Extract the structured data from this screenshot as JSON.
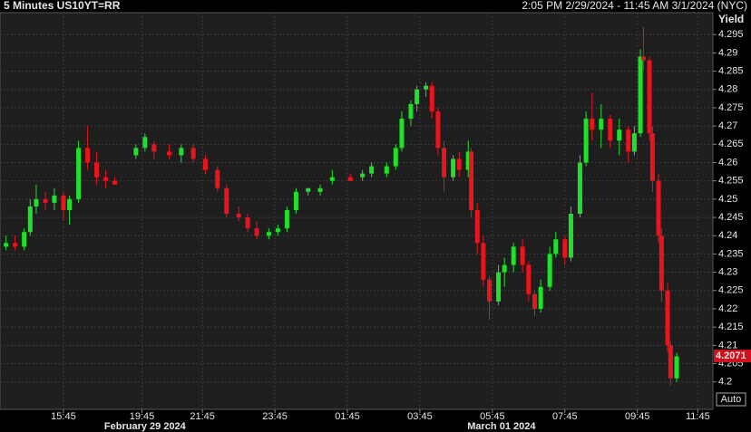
{
  "chart_data": {
    "type": "candlestick",
    "title": "5 Minutes US10YT=RR",
    "subtitle": "2:05 PM 2/29/2024 - 11:45 AM 3/1/2024 (NYC)",
    "y_label": "Yield",
    "last_price": 4.2071,
    "button": "Auto",
    "up_color": "#21e02c",
    "down_color": "#e8141e",
    "grid": true,
    "x": [
      2,
      5,
      8,
      10,
      12,
      15,
      18,
      21,
      23,
      26,
      29,
      32,
      35,
      38,
      45,
      48,
      51,
      56,
      60,
      64,
      68,
      72,
      75,
      79,
      82,
      85,
      89,
      92,
      95,
      98,
      102,
      106,
      110,
      116,
      120,
      123,
      128,
      131,
      133,
      136,
      138,
      141,
      143,
      145,
      147,
      150,
      152,
      155,
      156,
      158,
      160,
      162,
      165,
      167,
      170,
      173,
      175,
      177,
      179,
      182,
      184,
      187,
      189,
      192,
      194,
      196,
      199,
      202,
      205,
      208,
      210,
      212,
      213,
      215,
      216,
      218,
      219,
      221,
      222,
      224
    ],
    "open": [
      4.237,
      4.238,
      4.237,
      4.241,
      4.248,
      4.25,
      4.249,
      4.251,
      4.247,
      4.25,
      4.264,
      4.26,
      4.256,
      4.255,
      4.262,
      4.264,
      4.265,
      4.263,
      4.262,
      4.264,
      4.261,
      4.258,
      4.253,
      4.246,
      4.245,
      4.242,
      4.24,
      4.241,
      4.242,
      4.247,
      4.252,
      4.252,
      4.255,
      4.256,
      4.256,
      4.257,
      4.257,
      4.259,
      4.264,
      4.272,
      4.276,
      4.28,
      4.281,
      4.274,
      4.264,
      4.256,
      4.261,
      4.258,
      4.263,
      4.247,
      4.238,
      4.228,
      4.222,
      4.23,
      4.232,
      4.237,
      4.232,
      4.224,
      4.22,
      4.226,
      4.235,
      4.239,
      4.234,
      4.246,
      4.26,
      4.272,
      4.269,
      4.272,
      4.266,
      4.269,
      4.263,
      4.268,
      4.289,
      4.288,
      4.268,
      4.255,
      4.24,
      4.225,
      4.21,
      4.201
    ],
    "high": [
      4.24,
      4.24,
      4.242,
      4.25,
      4.254,
      4.252,
      4.253,
      4.252,
      4.251,
      4.266,
      4.27,
      4.263,
      4.258,
      4.256,
      4.265,
      4.268,
      4.266,
      4.265,
      4.265,
      4.265,
      4.262,
      4.259,
      4.254,
      4.248,
      4.246,
      4.244,
      4.242,
      4.243,
      4.248,
      4.253,
      4.253,
      4.254,
      4.258,
      4.257,
      4.258,
      4.26,
      4.26,
      4.265,
      4.274,
      4.277,
      4.281,
      4.282,
      4.282,
      4.275,
      4.266,
      4.262,
      4.263,
      4.266,
      4.264,
      4.249,
      4.24,
      4.229,
      4.232,
      4.234,
      4.238,
      4.239,
      4.233,
      4.225,
      4.228,
      4.237,
      4.241,
      4.24,
      4.248,
      4.262,
      4.274,
      4.279,
      4.276,
      4.273,
      4.272,
      4.27,
      4.27,
      4.291,
      4.297,
      4.289,
      4.27,
      4.257,
      4.242,
      4.227,
      4.211,
      4.208
    ],
    "low": [
      4.236,
      4.236,
      4.236,
      4.24,
      4.246,
      4.247,
      4.247,
      4.244,
      4.243,
      4.249,
      4.258,
      4.254,
      4.253,
      4.254,
      4.261,
      4.263,
      4.261,
      4.261,
      4.26,
      4.26,
      4.257,
      4.252,
      4.245,
      4.244,
      4.241,
      4.239,
      4.239,
      4.24,
      4.241,
      4.246,
      4.251,
      4.251,
      4.254,
      4.255,
      4.255,
      4.256,
      4.256,
      4.258,
      4.263,
      4.27,
      4.274,
      4.278,
      4.272,
      4.262,
      4.252,
      4.255,
      4.256,
      4.256,
      4.245,
      4.235,
      4.226,
      4.217,
      4.221,
      4.226,
      4.23,
      4.23,
      4.222,
      4.218,
      4.219,
      4.225,
      4.234,
      4.232,
      4.233,
      4.245,
      4.259,
      4.266,
      4.264,
      4.264,
      4.262,
      4.26,
      4.262,
      4.267,
      4.285,
      4.266,
      4.252,
      4.238,
      4.222,
      4.208,
      4.199,
      4.2
    ],
    "close": [
      4.238,
      4.237,
      4.241,
      4.248,
      4.25,
      4.249,
      4.251,
      4.247,
      4.25,
      4.264,
      4.26,
      4.256,
      4.255,
      4.254,
      4.264,
      4.267,
      4.263,
      4.262,
      4.264,
      4.261,
      4.258,
      4.253,
      4.246,
      4.245,
      4.242,
      4.24,
      4.241,
      4.242,
      4.247,
      4.252,
      4.253,
      4.253,
      4.256,
      4.255,
      4.257,
      4.259,
      4.259,
      4.264,
      4.272,
      4.276,
      4.28,
      4.281,
      4.274,
      4.264,
      4.256,
      4.261,
      4.258,
      4.263,
      4.247,
      4.238,
      4.228,
      4.222,
      4.23,
      4.232,
      4.237,
      4.232,
      4.224,
      4.22,
      4.226,
      4.235,
      4.239,
      4.234,
      4.246,
      4.26,
      4.272,
      4.269,
      4.272,
      4.266,
      4.269,
      4.263,
      4.268,
      4.289,
      4.288,
      4.268,
      4.255,
      4.24,
      4.225,
      4.21,
      4.201,
      4.207
    ],
    "xlim": [
      0,
      236
    ],
    "xticks": [
      {
        "value": 21,
        "label": "15:45"
      },
      {
        "value": 47,
        "label": "19:45"
      },
      {
        "value": 67,
        "label": "21:45"
      },
      {
        "value": 91,
        "label": "23:45"
      },
      {
        "value": 115,
        "label": "01:45"
      },
      {
        "value": 139,
        "label": "03:45"
      },
      {
        "value": 163,
        "label": "05:45"
      },
      {
        "value": 187,
        "label": "07:45"
      },
      {
        "value": 211,
        "label": "09:45"
      },
      {
        "value": 231,
        "label": "11:45"
      }
    ],
    "date_ticks": [
      {
        "value": 48,
        "label": "February 29 2024"
      },
      {
        "value": 166,
        "label": "March 01 2024"
      }
    ],
    "ylim": [
      4.1925,
      4.301
    ],
    "yticks": [
      4.2,
      4.205,
      4.21,
      4.215,
      4.22,
      4.225,
      4.23,
      4.235,
      4.24,
      4.245,
      4.25,
      4.255,
      4.26,
      4.265,
      4.27,
      4.275,
      4.28,
      4.285,
      4.29,
      4.295
    ]
  }
}
